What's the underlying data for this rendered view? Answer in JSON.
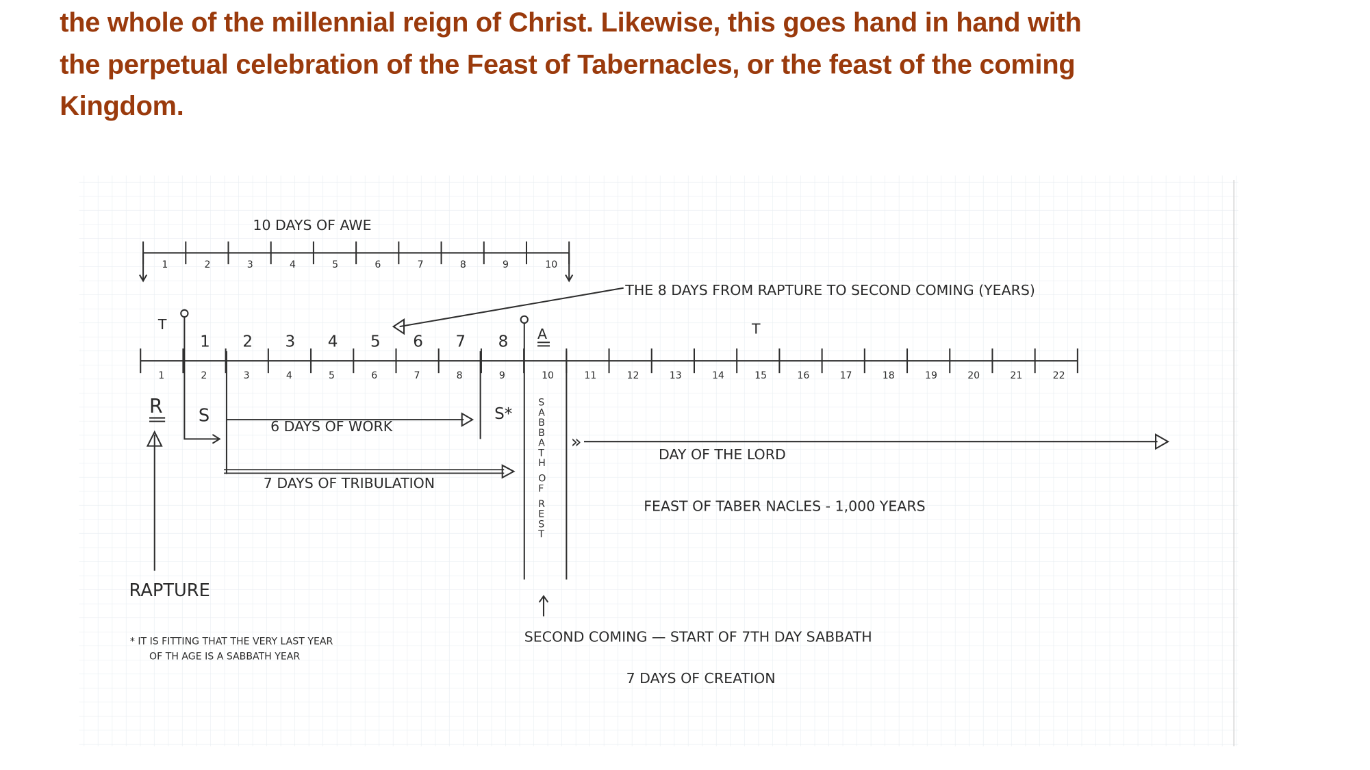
{
  "paragraph": {
    "lines": [
      "the whole of the millennial reign of Christ.  Likewise, this goes hand in hand with",
      "the perpetual celebration of the Feast of Tabernacles, or the feast of the coming",
      "Kingdom."
    ],
    "color": "#9a3a0c"
  },
  "diagram": {
    "awe_title": "10 DAYS OF AWE",
    "awe_numbers": [
      "1",
      "2",
      "3",
      "4",
      "5",
      "6",
      "7",
      "8",
      "9",
      "10"
    ],
    "upper_numbers": [
      "1",
      "2",
      "3",
      "4",
      "5",
      "6",
      "7",
      "8"
    ],
    "lower_numbers": [
      "1",
      "2",
      "3",
      "4",
      "5",
      "6",
      "7",
      "8",
      "9",
      "10",
      "11",
      "12",
      "13",
      "14",
      "15",
      "16",
      "17",
      "18",
      "19",
      "20",
      "21",
      "22"
    ],
    "leader_label": "THE 8 DAYS FROM RAPTURE TO SECOND COMING  (YEARS)",
    "t_left": "T",
    "t_right": "T",
    "a_mark": "A",
    "r_mark": "R",
    "s_mark": "S",
    "s_star": "S*",
    "work_label": "6 DAYS OF WORK",
    "tribulation_label": "7 DAYS OF TRIBULATION",
    "sabbath_vertical": "SABBATH OF REST",
    "chevrons": "»",
    "day_of_lord": "DAY  OF  THE  LORD",
    "feast_label": "FEAST  OF TABER NACLES  -   1,000 YEARS",
    "rapture": "RAPTURE",
    "footnote_1": "* IT IS FITTING THAT THE VERY LAST YEAR",
    "footnote_2": "OF TH AGE IS A SABBATH YEAR",
    "second_coming": "SECOND COMING — START OF 7TH DAY SABBATH",
    "creation": "7  DAYS OF CREATION"
  }
}
